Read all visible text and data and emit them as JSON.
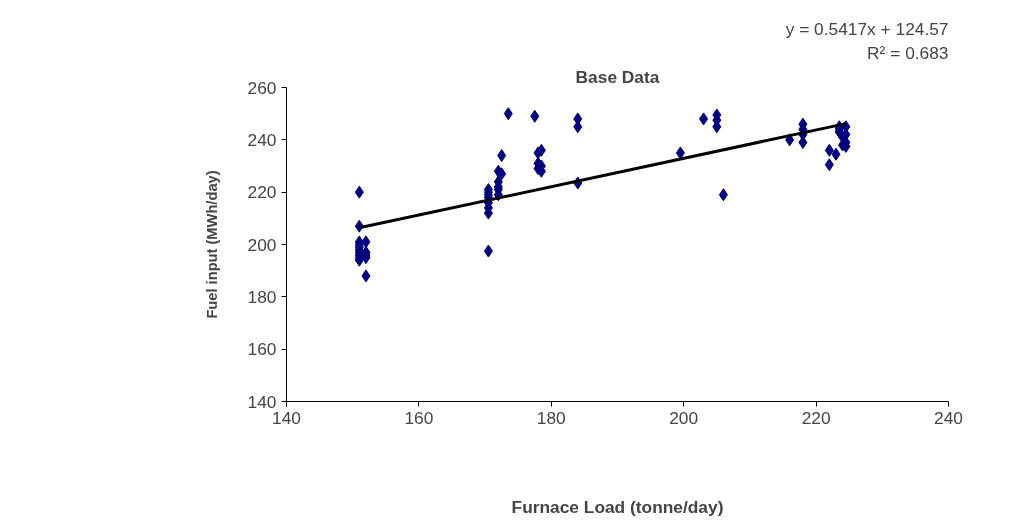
{
  "chart_data": {
    "type": "scatter",
    "title": "Base Data",
    "xlabel": "Furnace Load (tonne/day)",
    "ylabel": "Fuel input (MWh/day)",
    "annotations": [
      "y = 0.5417x + 124.57",
      "R² = 0.683"
    ],
    "xlim": [
      140,
      240
    ],
    "xticks": [
      140,
      160,
      180,
      200,
      220,
      240
    ],
    "ylim": [
      140,
      260
    ],
    "yticks": [
      140,
      160,
      180,
      200,
      220,
      240,
      260
    ],
    "grid": false,
    "marker": "diamond",
    "series": [
      {
        "color": "#000080",
        "x": [
          151,
          151,
          151,
          151,
          151,
          151,
          151,
          151,
          151,
          151,
          152,
          152,
          152,
          152,
          152,
          170.5,
          170.5,
          170.5,
          170.5,
          170.5,
          170.5,
          170.5,
          170.5,
          172,
          172,
          172,
          172,
          172,
          172.5,
          172.5,
          173.5,
          177.5,
          178,
          178,
          178,
          178.5,
          178.5,
          178.5,
          184,
          184,
          184,
          199.5,
          203,
          205,
          205,
          205,
          206,
          216,
          218,
          218,
          218,
          218,
          222,
          222,
          223,
          223.5,
          223.5,
          223.5,
          224,
          224,
          224.5,
          224.5,
          224.5,
          224.5
        ],
        "values": [
          220,
          207,
          201,
          200,
          199,
          198,
          197,
          196,
          195,
          194,
          188,
          201,
          197,
          196,
          195,
          197.5,
          212,
          214,
          216,
          218,
          219,
          220,
          221,
          228,
          221,
          222,
          219,
          224,
          234,
          227,
          250,
          249,
          235,
          231,
          229,
          236,
          230,
          228,
          248,
          245,
          223.5,
          235,
          248,
          249.5,
          247.5,
          245,
          219,
          240,
          246,
          244,
          242,
          239,
          236,
          230.5,
          234.5,
          245,
          244,
          243,
          241,
          238,
          245,
          242,
          239,
          237.5
        ]
      },
      {
        "type": "line",
        "color": "#000000",
        "line_style": "solid",
        "marker": "none",
        "x": [
          151,
          224.5
        ],
        "values": [
          206.4,
          246.2
        ]
      }
    ]
  }
}
